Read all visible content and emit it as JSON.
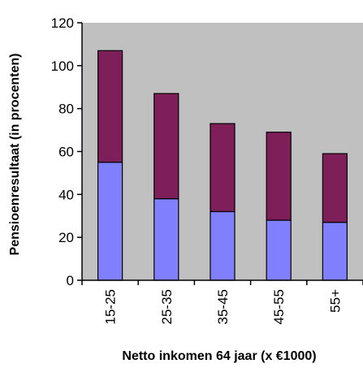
{
  "chart_data": {
    "type": "bar",
    "stacked": true,
    "title": "",
    "xlabel": "Netto inkomen 64 jaar (x €1000)",
    "ylabel": "Pensioenresultaat (in procenten)",
    "ylim": [
      0,
      120
    ],
    "yticks": [
      0,
      20,
      40,
      60,
      80,
      100,
      120
    ],
    "categories": [
      "15-25",
      "25-35",
      "35-45",
      "45-55",
      "55+"
    ],
    "series": [
      {
        "values": [
          55,
          38,
          32,
          28,
          27
        ],
        "color": "#8080ff"
      },
      {
        "values": [
          52,
          49,
          41,
          41,
          32
        ],
        "color": "#7f1f5a"
      }
    ],
    "plot_background": "#c0c0c0",
    "grid": false,
    "legend": "none"
  }
}
